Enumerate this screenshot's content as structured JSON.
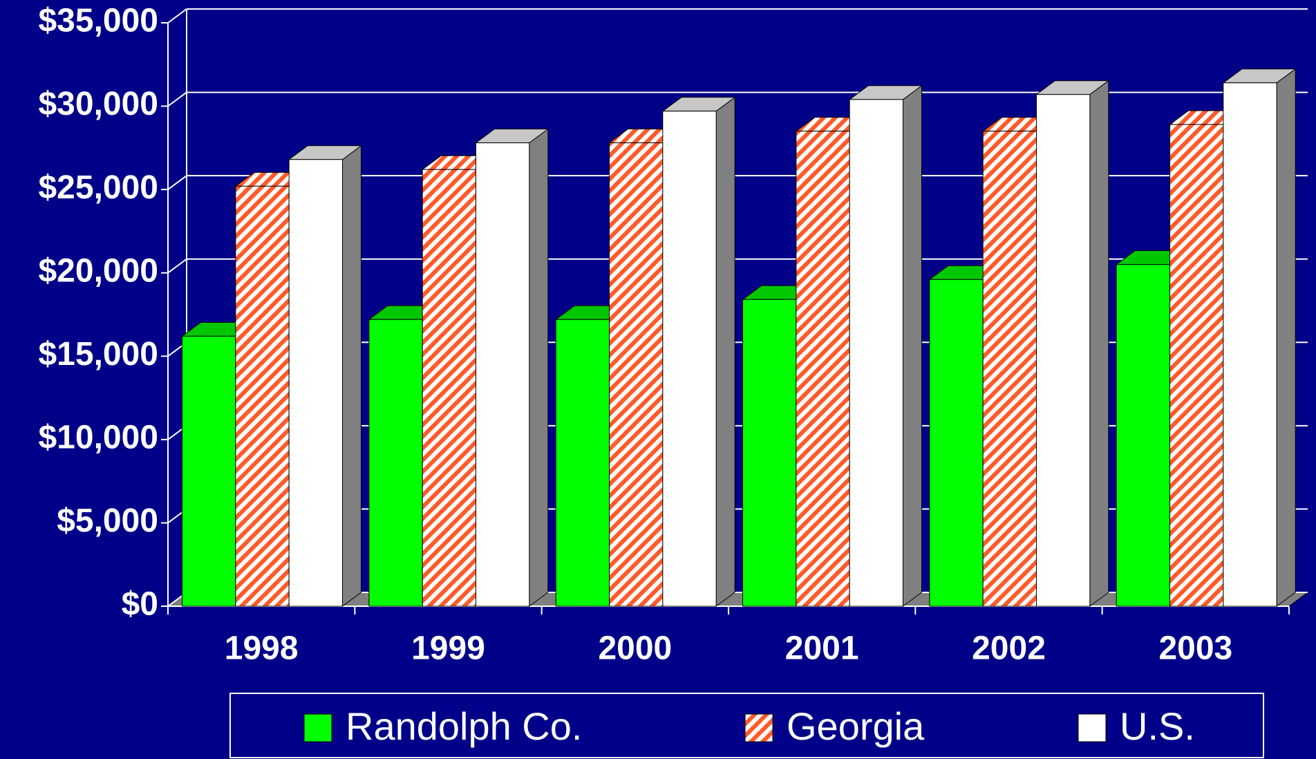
{
  "chart_data": {
    "type": "bar3d",
    "categories": [
      "1998",
      "1999",
      "2000",
      "2001",
      "2002",
      "2003"
    ],
    "series": [
      {
        "name": "Randolph Co.",
        "color": "#00ff00",
        "values": [
          16200,
          17200,
          17200,
          18400,
          19600,
          20500
        ]
      },
      {
        "name": "Georgia",
        "color": "#ff5a2a",
        "hatch": true,
        "values": [
          25200,
          26200,
          27800,
          28500,
          28500,
          28900
        ]
      },
      {
        "name": "U.S.",
        "color": "#ffffff",
        "values": [
          26800,
          27800,
          29700,
          30400,
          30700,
          31400
        ]
      }
    ],
    "ylim": [
      0,
      35000
    ],
    "yticks": [
      {
        "value": 0,
        "label": "$0"
      },
      {
        "value": 5000,
        "label": "$5,000"
      },
      {
        "value": 10000,
        "label": "$10,000"
      },
      {
        "value": 15000,
        "label": "$15,000"
      },
      {
        "value": 20000,
        "label": "$20,000"
      },
      {
        "value": 25000,
        "label": "$25,000"
      },
      {
        "value": 30000,
        "label": "$30,000"
      },
      {
        "value": 35000,
        "label": "$35,000"
      }
    ],
    "grid": true,
    "legend": "bottom"
  }
}
